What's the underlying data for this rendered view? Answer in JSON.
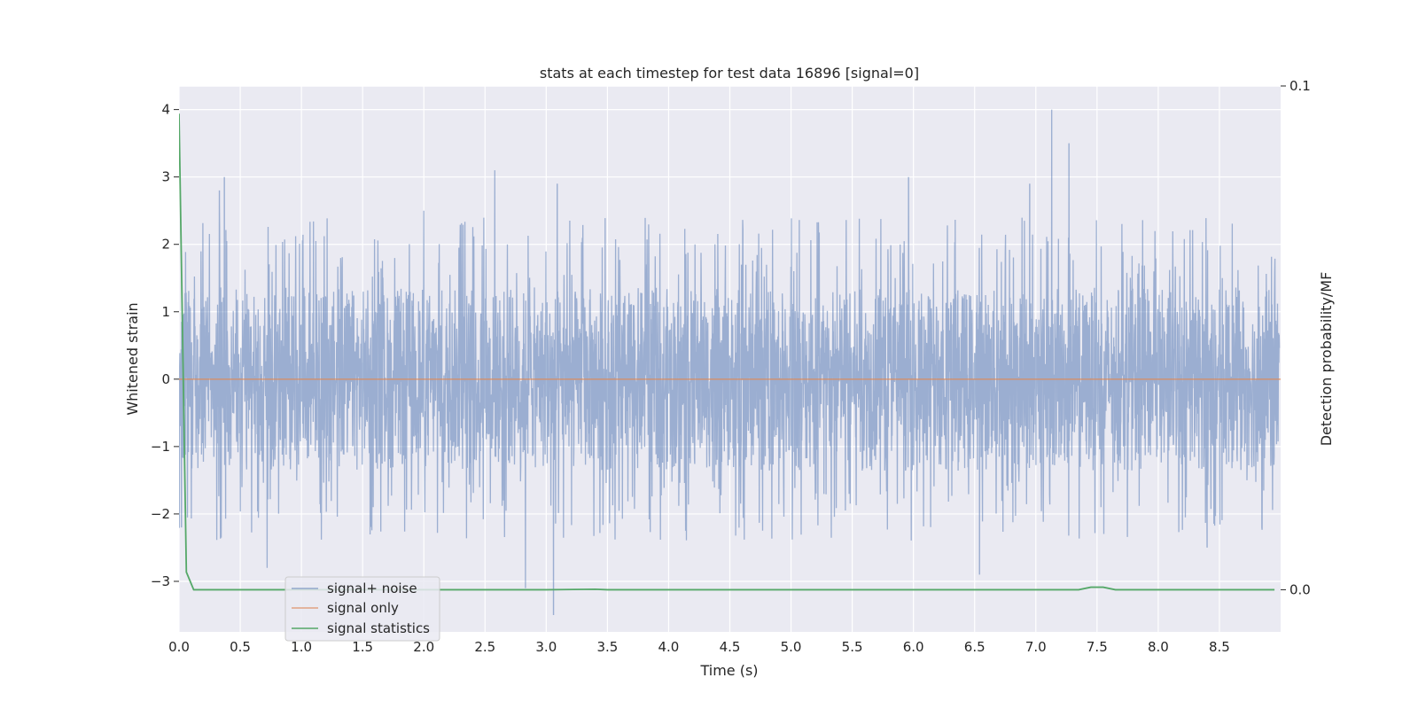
{
  "chart_data": {
    "type": "line",
    "title": "stats at each timestep for test data 16896 [signal=0]",
    "xlabel": "Time (s)",
    "ylabel": "Whitened strain",
    "y2label": "Detection probability/MF",
    "xlim": [
      0.0,
      9.0
    ],
    "ylim": [
      -3.75,
      4.35
    ],
    "y2lim": [
      -0.00837,
      0.1
    ],
    "xticks": [
      "0.0",
      "0.5",
      "1.0",
      "1.5",
      "2.0",
      "2.5",
      "3.0",
      "3.5",
      "4.0",
      "4.5",
      "5.0",
      "5.5",
      "6.0",
      "6.5",
      "7.0",
      "7.5",
      "8.0",
      "8.5"
    ],
    "yticks": [
      "−3",
      "−2",
      "−1",
      "0",
      "1",
      "2",
      "3",
      "4"
    ],
    "y2ticks": [
      "0.0",
      "0.1"
    ],
    "grid": true,
    "legend_position": "lower-left",
    "colors": {
      "background": "#eaeaf2",
      "grid": "#ffffff",
      "signal_noise": "#4c72b0",
      "signal_only": "#dd8452",
      "signal_statistics": "#55a868"
    },
    "series": [
      {
        "name": "signal+ noise",
        "axis": "left",
        "note_kind": "dense noise, approx. 4096 Hz sampling, amplitude band about ±1.5 with spikes",
        "typical_band": [
          -1.6,
          1.6
        ],
        "spikes": [
          {
            "x": 0.33,
            "y": 2.8
          },
          {
            "x": 0.37,
            "y": 3.0
          },
          {
            "x": 2.0,
            "y": 2.5
          },
          {
            "x": 2.58,
            "y": 3.1
          },
          {
            "x": 3.09,
            "y": 2.9
          },
          {
            "x": 7.13,
            "y": 4.0
          },
          {
            "x": 7.27,
            "y": 3.5
          },
          {
            "x": 6.95,
            "y": 2.9
          },
          {
            "x": 5.96,
            "y": 3.0
          },
          {
            "x": 0.72,
            "y": -2.8
          },
          {
            "x": 2.83,
            "y": -3.1
          },
          {
            "x": 3.06,
            "y": -3.5
          },
          {
            "x": 6.54,
            "y": -2.9
          },
          {
            "x": 8.4,
            "y": -2.5
          },
          {
            "x": 0.02,
            "y": -2.2
          }
        ]
      },
      {
        "name": "signal only",
        "axis": "left",
        "x": [
          0.0,
          9.0
        ],
        "values": [
          0.0,
          0.0
        ]
      },
      {
        "name": "signal statistics",
        "axis": "right",
        "x": [
          0.0,
          0.06,
          0.12,
          0.5,
          1.0,
          2.0,
          3.0,
          3.4,
          3.5,
          4.0,
          5.0,
          6.0,
          7.0,
          7.35,
          7.45,
          7.55,
          7.65,
          8.0,
          8.95
        ],
        "values": [
          0.0945,
          0.0035,
          0.0,
          0.0,
          0.0,
          0.0,
          0.0,
          0.0001,
          0.0,
          0.0,
          0.0,
          0.0,
          0.0,
          0.0,
          0.0005,
          0.0005,
          0.0,
          0.0,
          0.0
        ]
      }
    ],
    "legend": [
      "signal+ noise",
      "signal only",
      "signal statistics"
    ]
  }
}
